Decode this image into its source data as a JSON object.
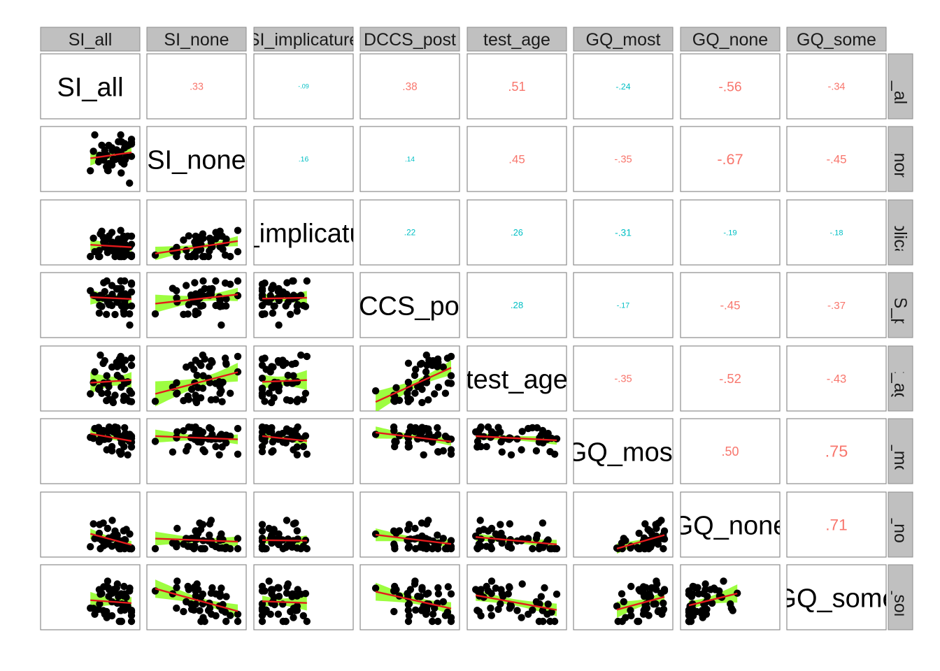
{
  "chart_data": {
    "type": "scatter",
    "subtype": "pairs-correlation-matrix",
    "variables": [
      "SI_all",
      "SI_none",
      "SI_implicature",
      "DCCS_post",
      "test_age",
      "GQ_most",
      "GQ_none",
      "GQ_some"
    ],
    "column_strip_labels": [
      "SI_all",
      "SI_none",
      "SI_implicature",
      "DCCS_post",
      "test_age",
      "GQ_most",
      "GQ_none",
      "GQ_some"
    ],
    "row_strip_labels": [
      "SI_all",
      "SI_none",
      "SI_implicature",
      "DCCS_post",
      "test_age",
      "GQ_most",
      "GQ_none",
      "GQ_some"
    ],
    "diagonal_labels": [
      "SI_all",
      "SI_none",
      "SI_implicature",
      "DCCS_post",
      "test_age",
      "GQ_most",
      "GQ_none",
      "GQ_some"
    ],
    "correlations": [
      {
        "row": 0,
        "col": 1,
        "label": ".33",
        "value": 0.33
      },
      {
        "row": 0,
        "col": 2,
        "label": "-.09",
        "value": -0.09
      },
      {
        "row": 0,
        "col": 3,
        "label": ".38",
        "value": 0.38
      },
      {
        "row": 0,
        "col": 4,
        "label": ".51",
        "value": 0.51
      },
      {
        "row": 0,
        "col": 5,
        "label": "-.24",
        "value": -0.24
      },
      {
        "row": 0,
        "col": 6,
        "label": "-.56",
        "value": -0.56
      },
      {
        "row": 0,
        "col": 7,
        "label": "-.34",
        "value": -0.34
      },
      {
        "row": 1,
        "col": 2,
        "label": ".16",
        "value": 0.16
      },
      {
        "row": 1,
        "col": 3,
        "label": ".14",
        "value": 0.14
      },
      {
        "row": 1,
        "col": 4,
        "label": ".45",
        "value": 0.45
      },
      {
        "row": 1,
        "col": 5,
        "label": "-.35",
        "value": -0.35
      },
      {
        "row": 1,
        "col": 6,
        "label": "-.67",
        "value": -0.67
      },
      {
        "row": 1,
        "col": 7,
        "label": "-.45",
        "value": -0.45
      },
      {
        "row": 2,
        "col": 3,
        "label": ".22",
        "value": 0.22
      },
      {
        "row": 2,
        "col": 4,
        "label": ".26",
        "value": 0.26
      },
      {
        "row": 2,
        "col": 5,
        "label": "-.31",
        "value": -0.31
      },
      {
        "row": 2,
        "col": 6,
        "label": "-.19",
        "value": -0.19
      },
      {
        "row": 2,
        "col": 7,
        "label": "-.18",
        "value": -0.18
      },
      {
        "row": 3,
        "col": 4,
        "label": ".28",
        "value": 0.28
      },
      {
        "row": 3,
        "col": 5,
        "label": "-.17",
        "value": -0.17
      },
      {
        "row": 3,
        "col": 6,
        "label": "-.45",
        "value": -0.45
      },
      {
        "row": 3,
        "col": 7,
        "label": "-.37",
        "value": -0.37
      },
      {
        "row": 4,
        "col": 5,
        "label": "-.35",
        "value": -0.35
      },
      {
        "row": 4,
        "col": 6,
        "label": "-.52",
        "value": -0.52
      },
      {
        "row": 4,
        "col": 7,
        "label": "-.43",
        "value": -0.43
      },
      {
        "row": 5,
        "col": 6,
        "label": ".50",
        "value": 0.5
      },
      {
        "row": 5,
        "col": 7,
        "label": ".75",
        "value": 0.75
      },
      {
        "row": 6,
        "col": 7,
        "label": ".71",
        "value": 0.71
      }
    ],
    "significant_correlations": [
      ".33",
      ".38",
      ".51",
      "-.56",
      "-.34",
      ".45",
      "-.35",
      "-.67",
      "-.45",
      "-.45",
      "-.37",
      "-.35",
      "-.52",
      "-.43",
      ".50",
      ".75",
      ".71"
    ],
    "colors": {
      "significant": "#f8766d",
      "non_significant": "#00bfc4",
      "strip_fill": "#c0c0c0",
      "panel_border": "#8c8c8c",
      "points": "#000000",
      "fit_line": "#e41a1c",
      "ribbon": "#7cfc00"
    },
    "grid": false,
    "legend": "none"
  }
}
